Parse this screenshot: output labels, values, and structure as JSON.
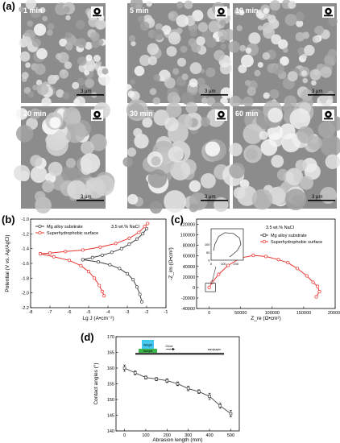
{
  "panels": {
    "a": {
      "label": "(a)",
      "sem_images": [
        {
          "time": "1 min",
          "scale_bar": "3 μm",
          "image_code": "1000"
        },
        {
          "time": "5 min",
          "scale_bar": "3 μm",
          "image_code": "1001"
        },
        {
          "time": "10 min",
          "scale_bar": "3 μm",
          "image_code": "1002"
        },
        {
          "time": "20 min",
          "scale_bar": "3 μm",
          "image_code": "1003"
        },
        {
          "time": "30 min",
          "scale_bar": "3 μm",
          "image_code": "1004"
        },
        {
          "time": "60 min",
          "scale_bar": "3 μm",
          "image_code": "1005"
        }
      ],
      "inset_icon": "droplet-on-surface-icon"
    },
    "b": {
      "label": "(b)"
    },
    "c": {
      "label": "(c)"
    },
    "d": {
      "label": "(d)"
    }
  },
  "chart_data": [
    {
      "id": "b",
      "type": "line",
      "xlabel": "Lg J (A•cm⁻²)",
      "ylabel": "Potential (V vs. Ag/AgCl)",
      "xlim": [
        -8,
        -1
      ],
      "ylim": [
        -2.2,
        -1.0
      ],
      "xticks": [
        "-8",
        "-7",
        "-6",
        "-5",
        "-4",
        "-3",
        "-2",
        "-1"
      ],
      "yticks": [
        "-1.0",
        "-1.2",
        "-1.4",
        "-1.6",
        "-1.8",
        "-2.0",
        "-2.2"
      ],
      "annotation": "3.5 wt.% NaCl",
      "legend_position": "top-left",
      "series": [
        {
          "name": "Mg alloy substrate",
          "color": "#404040",
          "marker": "triangle-left",
          "anodic": [
            [
              -5.3,
              -1.55
            ],
            [
              -4.8,
              -1.52
            ],
            [
              -4.3,
              -1.49
            ],
            [
              -3.8,
              -1.45
            ],
            [
              -3.3,
              -1.4
            ],
            [
              -2.9,
              -1.34
            ],
            [
              -2.5,
              -1.27
            ],
            [
              -2.2,
              -1.2
            ],
            [
              -2.0,
              -1.13
            ]
          ],
          "cathodic": [
            [
              -5.3,
              -1.55
            ],
            [
              -4.5,
              -1.58
            ],
            [
              -3.9,
              -1.62
            ],
            [
              -3.4,
              -1.67
            ],
            [
              -3.0,
              -1.74
            ],
            [
              -2.7,
              -1.82
            ],
            [
              -2.5,
              -1.92
            ],
            [
              -2.35,
              -2.02
            ],
            [
              -2.25,
              -2.12
            ]
          ]
        },
        {
          "name": "Superhydrophobic surface",
          "color": "#e8332e",
          "marker": "circle-open",
          "anodic": [
            [
              -7.5,
              -1.47
            ],
            [
              -7.0,
              -1.46
            ],
            [
              -6.2,
              -1.44
            ],
            [
              -5.3,
              -1.42
            ],
            [
              -4.4,
              -1.38
            ],
            [
              -3.6,
              -1.33
            ],
            [
              -2.9,
              -1.26
            ],
            [
              -2.4,
              -1.18
            ],
            [
              -2.1,
              -1.1
            ],
            [
              -1.95,
              -1.06
            ]
          ],
          "cathodic": [
            [
              -7.5,
              -1.47
            ],
            [
              -6.8,
              -1.51
            ],
            [
              -6.0,
              -1.56
            ],
            [
              -5.4,
              -1.63
            ],
            [
              -5.0,
              -1.71
            ],
            [
              -4.7,
              -1.8
            ],
            [
              -4.45,
              -1.9
            ],
            [
              -4.3,
              -1.98
            ],
            [
              -4.2,
              -2.04
            ]
          ]
        }
      ]
    },
    {
      "id": "c",
      "type": "scatter",
      "xlabel": "Z_re (Ω•cm²)",
      "ylabel": "-Z_im (Ω•cm²)",
      "xlim": [
        -20000,
        200000
      ],
      "ylim": [
        -40000,
        130000
      ],
      "xticks": [
        "0",
        "50000",
        "100000",
        "150000",
        "200000"
      ],
      "yticks": [
        "-40000",
        "-20000",
        "0",
        "20000",
        "40000",
        "60000",
        "80000",
        "100000",
        "120000"
      ],
      "annotation": "3.5 wt.% NaCl",
      "legend_position": "top-right",
      "series": [
        {
          "name": "Mg alloy substrate",
          "color": "#404040",
          "marker": "square-open",
          "points": [
            [
              150,
              20
            ],
            [
              210,
              60
            ],
            [
              240,
              100
            ],
            [
              230,
              140
            ],
            [
              180,
              170
            ],
            [
              110,
              175
            ],
            [
              60,
              150
            ],
            [
              30,
              100
            ],
            [
              20,
              60
            ]
          ]
        },
        {
          "name": "Superhydrophobic surface",
          "color": "#e8332e",
          "marker": "circle-open",
          "points": [
            [
              0,
              0
            ],
            [
              5000,
              10000
            ],
            [
              15000,
              25000
            ],
            [
              30000,
              42000
            ],
            [
              50000,
              56000
            ],
            [
              70000,
              61000
            ],
            [
              90000,
              59000
            ],
            [
              110000,
              53000
            ],
            [
              125000,
              47000
            ],
            [
              140000,
              36000
            ],
            [
              155000,
              22000
            ],
            [
              165000,
              10000
            ],
            [
              172000,
              2000
            ],
            [
              175000,
              -8000
            ],
            [
              170000,
              -18000
            ]
          ]
        }
      ],
      "inset": {
        "xticks": [
          "0",
          "100",
          "200"
        ],
        "yticks": [
          "0",
          "50",
          "100"
        ]
      }
    },
    {
      "id": "d",
      "type": "line",
      "xlabel": "Abrasion length (mm)",
      "ylabel": "Contact angles (°)",
      "xlim": [
        -40,
        540
      ],
      "ylim": [
        140,
        170
      ],
      "xticks": [
        "0",
        "100",
        "200",
        "300",
        "400",
        "500"
      ],
      "yticks": [
        "140",
        "145",
        "150",
        "155",
        "160",
        "165",
        "170"
      ],
      "x": [
        0,
        50,
        100,
        150,
        200,
        250,
        300,
        350,
        400,
        450,
        500
      ],
      "values": [
        160,
        158.5,
        157,
        156.5,
        156,
        155,
        153.5,
        152.5,
        151,
        148,
        145.5
      ],
      "errors": [
        1,
        0.6,
        0.5,
        0.5,
        0.6,
        0.6,
        0.7,
        0.6,
        1,
        0.8,
        1
      ],
      "color": "#404040",
      "inset_labels": {
        "weight": "Weight",
        "sample": "Sample",
        "glove": "Glove",
        "sandpaper": "sandpaper"
      }
    }
  ]
}
